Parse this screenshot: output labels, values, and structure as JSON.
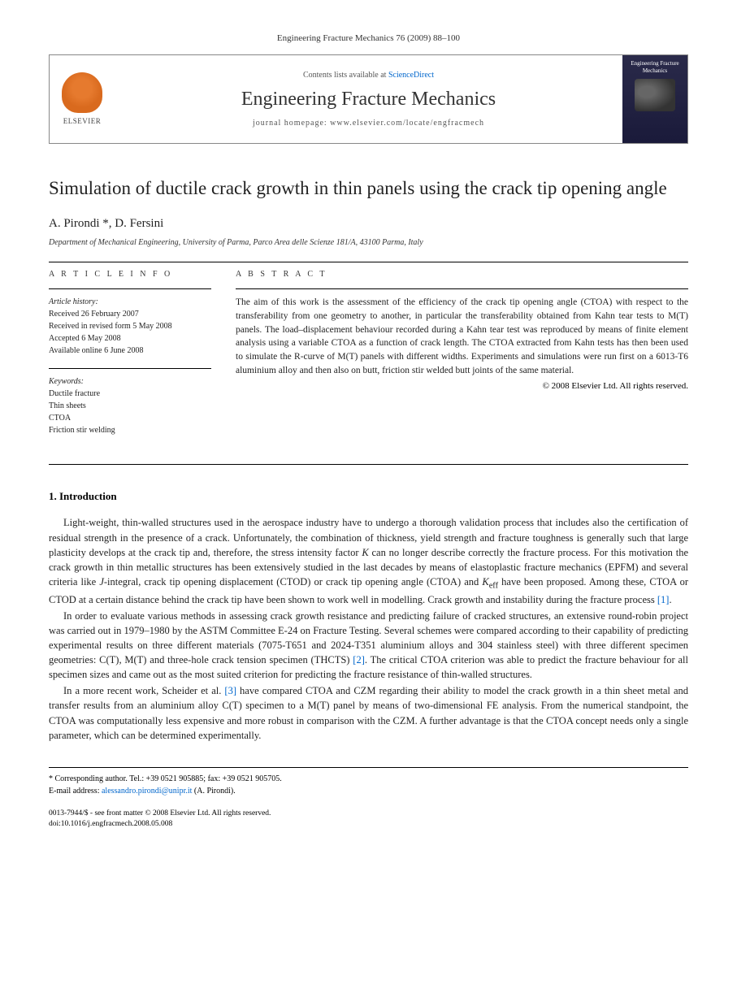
{
  "journal_ref": "Engineering Fracture Mechanics 76 (2009) 88–100",
  "header": {
    "contents_prefix": "Contents lists available at ",
    "contents_link": "ScienceDirect",
    "journal_name": "Engineering Fracture Mechanics",
    "homepage_label": "journal homepage: ",
    "homepage_url": "www.elsevier.com/locate/engfracmech",
    "elsevier_label": "ELSEVIER",
    "cover_title": "Engineering Fracture Mechanics"
  },
  "title": "Simulation of ductile crack growth in thin panels using the crack tip opening angle",
  "authors": "A. Pirondi *, D. Fersini",
  "affiliation": "Department of Mechanical Engineering, University of Parma, Parco Area delle Scienze 181/A, 43100 Parma, Italy",
  "info": {
    "section_label": "A R T I C L E   I N F O",
    "history_label": "Article history:",
    "received": "Received 26 February 2007",
    "revised": "Received in revised form 5 May 2008",
    "accepted": "Accepted 6 May 2008",
    "online": "Available online 6 June 2008",
    "keywords_label": "Keywords:",
    "kw1": "Ductile fracture",
    "kw2": "Thin sheets",
    "kw3": "CTOA",
    "kw4": "Friction stir welding"
  },
  "abstract": {
    "section_label": "A B S T R A C T",
    "text": "The aim of this work is the assessment of the efficiency of the crack tip opening angle (CTOA) with respect to the transferability from one geometry to another, in particular the transferability obtained from Kahn tear tests to M(T) panels. The load–displacement behaviour recorded during a Kahn tear test was reproduced by means of finite element analysis using a variable CTOA as a function of crack length. The CTOA extracted from Kahn tests has then been used to simulate the R-curve of M(T) panels with different widths. Experiments and simulations were run first on a 6013-T6 aluminium alloy and then also on butt, friction stir welded butt joints of the same material.",
    "copyright": "© 2008 Elsevier Ltd. All rights reserved."
  },
  "intro": {
    "heading": "1. Introduction",
    "p1a": "Light-weight, thin-walled structures used in the aerospace industry have to undergo a thorough validation process that includes also the certification of residual strength in the presence of a crack. Unfortunately, the combination of thickness, yield strength and fracture toughness is generally such that large plasticity develops at the crack tip and, therefore, the stress intensity factor ",
    "p1_k": "K",
    "p1b": " can no longer describe correctly the fracture process. For this motivation the crack growth in thin metallic structures has been extensively studied in the last decades by means of elastoplastic fracture mechanics (EPFM) and several criteria like ",
    "p1_j": "J",
    "p1c": "-integral, crack tip opening displacement (CTOD) or crack tip opening angle (CTOA) and ",
    "p1_keff": "K",
    "p1_eff": "eff",
    "p1d": " have been proposed. Among these, CTOA or CTOD at a certain distance behind the crack tip have been shown to work well in modelling. Crack growth and instability during the fracture process ",
    "p1_ref": "[1]",
    "p1e": ".",
    "p2a": "In order to evaluate various methods in assessing crack growth resistance and predicting failure of cracked structures, an extensive round-robin project was carried out in 1979–1980 by the ASTM Committee E-24 on Fracture Testing. Several schemes were compared according to their capability of predicting experimental results on three different materials (7075-T651 and 2024-T351 aluminium alloys and 304 stainless steel) with three different specimen geometries: C(T), M(T) and three-hole crack tension specimen (THCTS) ",
    "p2_ref": "[2]",
    "p2b": ". The critical CTOA criterion was able to predict the fracture behaviour for all specimen sizes and came out as the most suited criterion for predicting the fracture resistance of thin-walled structures.",
    "p3a": "In a more recent work, Scheider et al. ",
    "p3_ref": "[3]",
    "p3b": " have compared CTOA and CZM regarding their ability to model the crack growth in a thin sheet metal and transfer results from an aluminium alloy C(T) specimen to a M(T) panel by means of two-dimensional FE analysis. From the numerical standpoint, the CTOA was computationally less expensive and more robust in comparison with the CZM. A further advantage is that the CTOA concept needs only a single parameter, which can be determined experimentally."
  },
  "footer": {
    "corresponding": "* Corresponding author. Tel.: +39 0521 905885; fax: +39 0521 905705.",
    "email_label": "E-mail address: ",
    "email": "alessandro.pirondi@unipr.it",
    "email_suffix": " (A. Pirondi).",
    "issn": "0013-7944/$ - see front matter © 2008 Elsevier Ltd. All rights reserved.",
    "doi": "doi:10.1016/j.engfracmech.2008.05.008"
  },
  "colors": {
    "link": "#0066cc",
    "text": "#222222",
    "border": "#888888",
    "elsevier_orange": "#e67a2e"
  }
}
